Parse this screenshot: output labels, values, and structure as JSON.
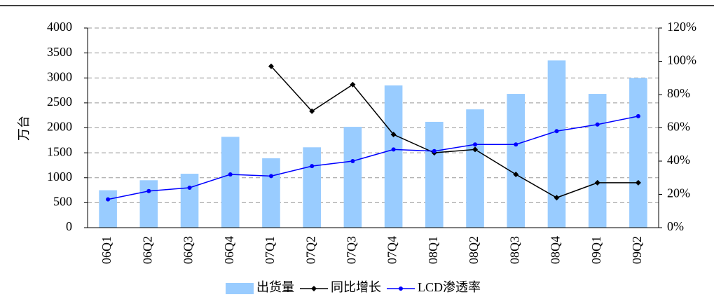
{
  "chart_data": {
    "type": "bar",
    "categories": [
      "06Q1",
      "06Q2",
      "06Q3",
      "06Q4",
      "07Q1",
      "07Q2",
      "07Q3",
      "07Q4",
      "08Q1",
      "08Q2",
      "08Q3",
      "08Q4",
      "09Q1",
      "09Q2"
    ],
    "ylabel": "万台",
    "ylim": [
      0,
      4000
    ],
    "yticks": [
      0,
      500,
      1000,
      1500,
      2000,
      2500,
      3000,
      3500,
      4000
    ],
    "y2lim": [
      0,
      120
    ],
    "y2ticks": [
      {
        "value": 0,
        "label": "0%"
      },
      {
        "value": 20,
        "label": "20%"
      },
      {
        "value": 40,
        "label": "40%"
      },
      {
        "value": 60,
        "label": "60%"
      },
      {
        "value": 80,
        "label": "80%"
      },
      {
        "value": 100,
        "label": "100%"
      },
      {
        "value": 120,
        "label": "120%"
      }
    ],
    "grid": true,
    "series": [
      {
        "name": "出货量",
        "type": "bar",
        "color": "#99ccff",
        "values": [
          750,
          950,
          1080,
          1820,
          1390,
          1610,
          2020,
          2850,
          2120,
          2370,
          2680,
          3350,
          2680,
          3000
        ]
      },
      {
        "name": "同比增长",
        "type": "line",
        "axis": "y2",
        "color": "#000000",
        "marker": "diamond",
        "values": [
          null,
          null,
          null,
          null,
          97,
          70,
          86,
          56,
          45,
          47,
          32,
          18,
          27,
          27
        ]
      },
      {
        "name": "LCD渗透率",
        "type": "line",
        "axis": "y2",
        "color": "#0000ff",
        "marker": "circle",
        "values": [
          17,
          22,
          24,
          32,
          31,
          37,
          40,
          47,
          46,
          50,
          50,
          58,
          62,
          67
        ]
      }
    ]
  }
}
